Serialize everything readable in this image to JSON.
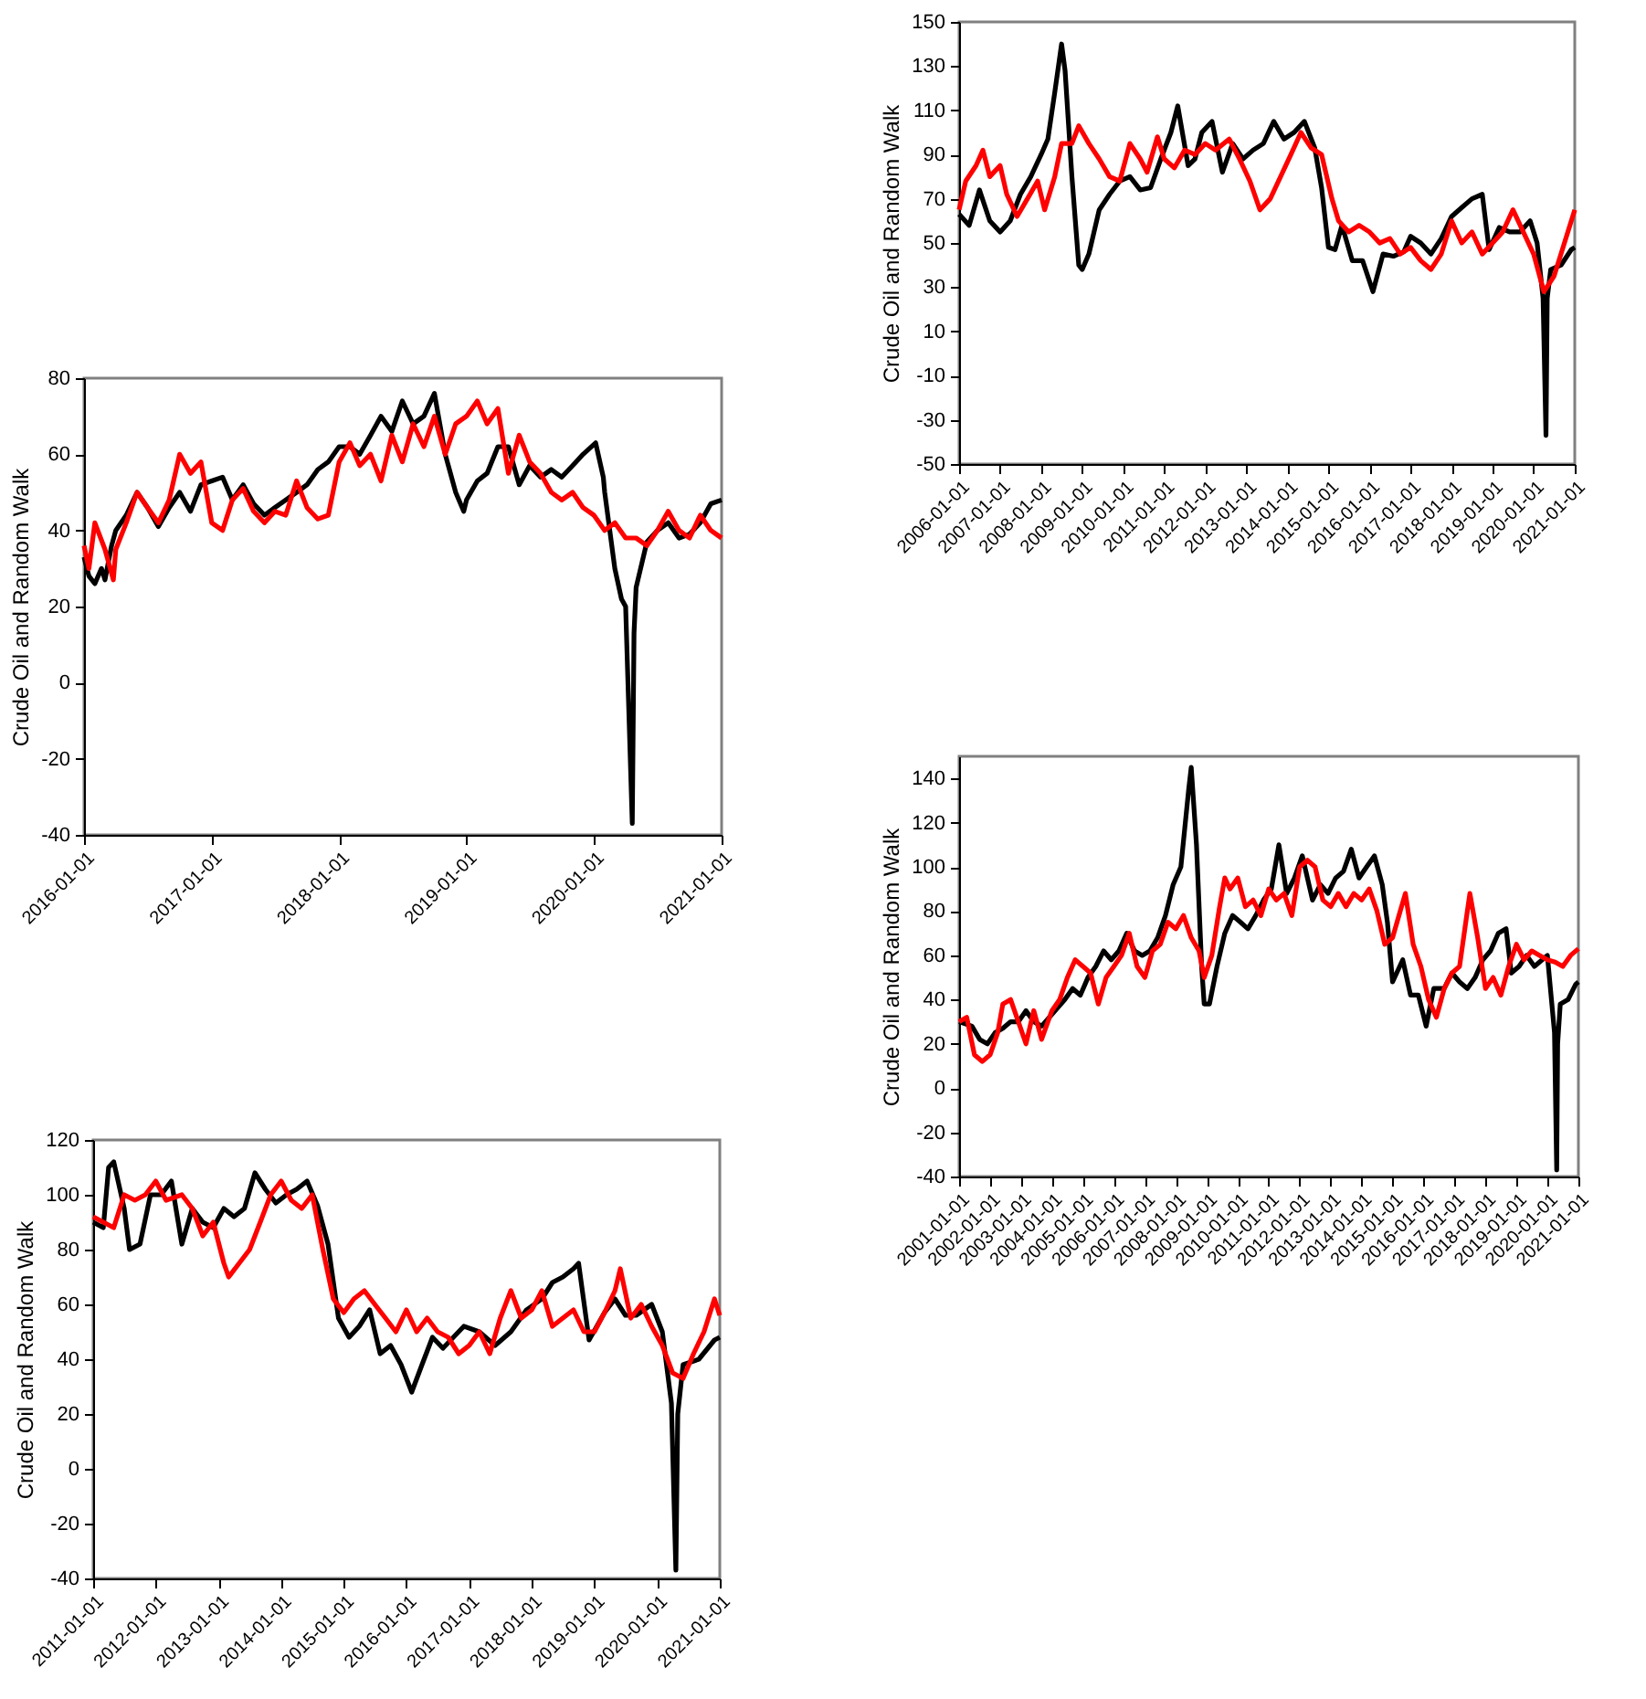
{
  "chart_data": [
    {
      "type": "line",
      "ylabel": "Crude Oil and Random Walk",
      "xlim": [
        "2006-01-01",
        "2021-01-01"
      ],
      "ylim": [
        -50,
        150
      ],
      "yticks": [
        -50,
        -30,
        -10,
        10,
        30,
        50,
        70,
        90,
        110,
        130,
        150
      ],
      "xticks": [
        "2006-01-01",
        "2007-01-01",
        "2008-01-01",
        "2009-01-01",
        "2010-01-01",
        "2011-01-01",
        "2012-01-01",
        "2013-01-01",
        "2014-01-01",
        "2015-01-01",
        "2016-01-01",
        "2017-01-01",
        "2018-01-01",
        "2019-01-01",
        "2020-01-01",
        "2021-01-01"
      ],
      "series": [
        {
          "color": "#000000",
          "x": [
            "2006-01",
            "2006-04",
            "2006-07",
            "2006-10",
            "2007-01",
            "2007-04",
            "2007-07",
            "2007-10",
            "2008-01",
            "2008-03",
            "2008-05",
            "2008-07",
            "2008-08",
            "2008-10",
            "2008-12",
            "2009-01",
            "2009-03",
            "2009-06",
            "2009-09",
            "2009-12",
            "2010-03",
            "2010-06",
            "2010-09",
            "2010-12",
            "2011-03",
            "2011-05",
            "2011-08",
            "2011-10",
            "2011-12",
            "2012-03",
            "2012-06",
            "2012-09",
            "2012-12",
            "2013-03",
            "2013-06",
            "2013-09",
            "2013-12",
            "2014-03",
            "2014-06",
            "2014-09",
            "2014-11",
            "2015-01",
            "2015-03",
            "2015-05",
            "2015-08",
            "2015-11",
            "2016-02",
            "2016-05",
            "2016-08",
            "2016-11",
            "2017-01",
            "2017-04",
            "2017-07",
            "2017-10",
            "2018-01",
            "2018-04",
            "2018-07",
            "2018-10",
            "2018-12",
            "2019-03",
            "2019-06",
            "2019-09",
            "2019-12",
            "2020-02",
            "2020-03-25",
            "2020-04-20",
            "2020-05",
            "2020-06",
            "2020-09",
            "2020-12",
            "2021-01"
          ],
          "values": [
            63,
            58,
            74,
            60,
            55,
            60,
            72,
            80,
            90,
            97,
            118,
            140,
            128,
            80,
            40,
            38,
            45,
            65,
            72,
            78,
            80,
            74,
            75,
            88,
            100,
            112,
            85,
            88,
            100,
            105,
            82,
            95,
            88,
            92,
            95,
            105,
            97,
            100,
            105,
            93,
            75,
            48,
            47,
            58,
            42,
            42,
            28,
            45,
            44,
            46,
            53,
            50,
            45,
            52,
            62,
            66,
            70,
            72,
            47,
            57,
            55,
            55,
            60,
            50,
            25,
            -37,
            25,
            38,
            40,
            47,
            48
          ]
        },
        {
          "color": "#ff0000",
          "x": [
            "2006-01",
            "2006-03",
            "2006-06",
            "2006-08",
            "2006-10",
            "2007-01",
            "2007-03",
            "2007-06",
            "2007-09",
            "2007-12",
            "2008-02",
            "2008-05",
            "2008-07",
            "2008-10",
            "2008-12",
            "2009-03",
            "2009-06",
            "2009-09",
            "2009-12",
            "2010-03",
            "2010-06",
            "2010-08",
            "2010-11",
            "2011-01",
            "2011-04",
            "2011-07",
            "2011-10",
            "2012-01",
            "2012-04",
            "2012-08",
            "2012-11",
            "2013-02",
            "2013-05",
            "2013-08",
            "2013-11",
            "2014-02",
            "2014-05",
            "2014-08",
            "2014-11",
            "2015-02",
            "2015-04",
            "2015-07",
            "2015-10",
            "2016-01",
            "2016-04",
            "2016-07",
            "2016-10",
            "2017-01",
            "2017-04",
            "2017-07",
            "2017-10",
            "2018-01",
            "2018-04",
            "2018-07",
            "2018-10",
            "2019-01",
            "2019-04",
            "2019-07",
            "2019-10",
            "2020-01",
            "2020-04",
            "2020-07",
            "2020-10",
            "2021-01"
          ],
          "values": [
            65,
            78,
            85,
            92,
            80,
            85,
            72,
            62,
            70,
            78,
            65,
            80,
            95,
            95,
            103,
            95,
            88,
            80,
            78,
            95,
            88,
            82,
            98,
            88,
            84,
            92,
            90,
            95,
            92,
            97,
            88,
            78,
            65,
            70,
            80,
            90,
            100,
            93,
            90,
            70,
            60,
            55,
            58,
            55,
            50,
            52,
            45,
            48,
            42,
            38,
            45,
            60,
            50,
            55,
            45,
            50,
            55,
            65,
            55,
            45,
            28,
            35,
            50,
            65
          ]
        }
      ]
    },
    {
      "type": "line",
      "ylabel": "Crude Oil and Random Walk",
      "xlim": [
        "2016-01-01",
        "2021-01-01"
      ],
      "ylim": [
        -40,
        80
      ],
      "yticks": [
        -40,
        -20,
        0,
        20,
        40,
        60,
        80
      ],
      "xticks": [
        "2016-01-01",
        "2017-01-01",
        "2018-01-01",
        "2019-01-01",
        "2020-01-01",
        "2021-01-01"
      ],
      "series": [
        {
          "color": "#000000",
          "x": [
            "2016-01-01",
            "2016-01-15",
            "2016-02-01",
            "2016-02-20",
            "2016-03-01",
            "2016-03-20",
            "2016-04",
            "2016-05",
            "2016-06",
            "2016-07",
            "2016-08",
            "2016-09",
            "2016-10",
            "2016-11",
            "2016-12",
            "2017-01",
            "2017-02",
            "2017-03",
            "2017-04",
            "2017-05",
            "2017-06",
            "2017-07",
            "2017-08",
            "2017-09",
            "2017-10",
            "2017-11",
            "2017-12",
            "2018-01",
            "2018-02",
            "2018-03",
            "2018-04",
            "2018-05",
            "2018-06",
            "2018-07",
            "2018-08",
            "2018-09",
            "2018-10",
            "2018-11",
            "2018-12",
            "2018-12-24",
            "2019-01",
            "2019-02",
            "2019-03",
            "2019-04",
            "2019-05",
            "2019-06",
            "2019-07",
            "2019-08",
            "2019-09",
            "2019-10",
            "2019-11",
            "2019-12",
            "2020-01-06",
            "2020-01-28",
            "2020-02",
            "2020-03",
            "2020-03-20",
            "2020-04-01",
            "2020-04-20",
            "2020-04-25",
            "2020-05",
            "2020-06",
            "2020-07",
            "2020-08",
            "2020-09",
            "2020-10",
            "2020-11",
            "2020-12",
            "2021-01-01"
          ],
          "values": [
            33,
            28,
            26,
            30,
            27,
            36,
            40,
            44,
            50,
            46,
            41,
            46,
            50,
            45,
            52,
            53,
            54,
            48,
            52,
            47,
            44,
            46,
            48,
            50,
            52,
            56,
            58,
            62,
            62,
            60,
            65,
            70,
            66,
            74,
            68,
            70,
            76,
            60,
            50,
            45,
            48,
            53,
            55,
            62,
            62,
            52,
            57,
            54,
            56,
            54,
            57,
            60,
            63,
            54,
            50,
            30,
            22,
            20,
            -37,
            13,
            25,
            37,
            40,
            42,
            38,
            39,
            42,
            47,
            48
          ]
        },
        {
          "color": "#ff0000",
          "x": [
            "2016-01-01",
            "2016-01-15",
            "2016-02",
            "2016-03",
            "2016-03-25",
            "2016-04",
            "2016-05",
            "2016-06",
            "2016-07",
            "2016-08",
            "2016-09",
            "2016-10",
            "2016-11",
            "2016-12",
            "2017-01",
            "2017-02",
            "2017-03",
            "2017-04",
            "2017-05",
            "2017-06",
            "2017-07",
            "2017-08",
            "2017-09",
            "2017-10",
            "2017-11",
            "2017-12",
            "2018-01",
            "2018-02",
            "2018-03",
            "2018-04",
            "2018-05",
            "2018-06",
            "2018-07",
            "2018-08",
            "2018-09",
            "2018-10",
            "2018-11",
            "2018-12",
            "2019-01",
            "2019-02",
            "2019-03",
            "2019-04",
            "2019-05",
            "2019-06",
            "2019-07",
            "2019-08",
            "2019-09",
            "2019-10",
            "2019-11",
            "2019-12",
            "2020-01",
            "2020-02",
            "2020-03",
            "2020-04",
            "2020-05",
            "2020-06",
            "2020-07",
            "2020-08",
            "2020-09",
            "2020-10",
            "2020-11",
            "2020-12",
            "2021-01-01"
          ],
          "values": [
            36,
            30,
            42,
            35,
            27,
            35,
            42,
            50,
            46,
            42,
            48,
            60,
            55,
            58,
            42,
            40,
            48,
            51,
            45,
            42,
            45,
            44,
            53,
            46,
            43,
            44,
            58,
            63,
            57,
            60,
            53,
            65,
            58,
            68,
            62,
            70,
            60,
            68,
            70,
            74,
            68,
            72,
            55,
            65,
            58,
            55,
            50,
            48,
            50,
            46,
            44,
            40,
            42,
            38,
            38,
            36,
            40,
            45,
            40,
            38,
            44,
            40,
            38
          ]
        }
      ]
    },
    {
      "type": "line",
      "ylabel": "Crude Oil and Random Walk",
      "xlim": [
        "2001-01-01",
        "2021-01-01"
      ],
      "ylim": [
        -40,
        150
      ],
      "yticks": [
        -40,
        -20,
        0,
        20,
        40,
        60,
        80,
        100,
        120,
        140
      ],
      "xticks": [
        "2001-01-01",
        "2002-01-01",
        "2003-01-01",
        "2004-01-01",
        "2005-01-01",
        "2006-01-01",
        "2007-01-01",
        "2008-01-01",
        "2009-01-01",
        "2010-01-01",
        "2011-01-01",
        "2012-01-01",
        "2013-01-01",
        "2014-01-01",
        "2015-01-01",
        "2016-01-01",
        "2017-01-01",
        "2018-01-01",
        "2019-01-01",
        "2020-01-01",
        "2021-01-01"
      ],
      "series": [
        {
          "color": "#000000",
          "x": [
            "2001-01",
            "2001-06",
            "2001-09",
            "2001-12",
            "2002-03",
            "2002-06",
            "2002-09",
            "2002-12",
            "2003-03",
            "2003-06",
            "2003-09",
            "2003-12",
            "2004-03",
            "2004-06",
            "2004-09",
            "2004-12",
            "2005-03",
            "2005-06",
            "2005-09",
            "2005-12",
            "2006-03",
            "2006-06",
            "2006-09",
            "2006-12",
            "2007-03",
            "2007-06",
            "2007-09",
            "2007-12",
            "2008-03",
            "2008-06",
            "2008-07",
            "2008-09",
            "2008-11",
            "2008-12",
            "2009-02",
            "2009-05",
            "2009-08",
            "2009-11",
            "2010-02",
            "2010-05",
            "2010-08",
            "2010-11",
            "2011-02",
            "2011-05",
            "2011-08",
            "2011-11",
            "2012-02",
            "2012-06",
            "2012-09",
            "2012-12",
            "2013-03",
            "2013-06",
            "2013-09",
            "2013-12",
            "2014-03",
            "2014-06",
            "2014-09",
            "2014-11",
            "2015-01",
            "2015-05",
            "2015-08",
            "2015-11",
            "2016-02",
            "2016-05",
            "2016-09",
            "2016-12",
            "2017-03",
            "2017-06",
            "2017-09",
            "2017-12",
            "2018-03",
            "2018-06",
            "2018-09",
            "2018-11",
            "2019-02",
            "2019-05",
            "2019-08",
            "2019-11",
            "2020-01",
            "2020-03-25",
            "2020-04-20",
            "2020-05",
            "2020-06",
            "2020-09",
            "2020-12",
            "2021-01"
          ],
          "values": [
            30,
            28,
            22,
            20,
            25,
            27,
            30,
            30,
            35,
            30,
            28,
            32,
            36,
            40,
            45,
            42,
            50,
            55,
            62,
            58,
            62,
            70,
            62,
            60,
            62,
            68,
            78,
            92,
            100,
            135,
            145,
            110,
            55,
            38,
            38,
            55,
            70,
            78,
            75,
            72,
            78,
            85,
            90,
            110,
            88,
            95,
            105,
            85,
            92,
            88,
            95,
            98,
            108,
            95,
            100,
            105,
            92,
            75,
            48,
            58,
            42,
            42,
            28,
            45,
            45,
            52,
            48,
            45,
            50,
            58,
            62,
            70,
            72,
            52,
            55,
            60,
            55,
            58,
            60,
            25,
            -37,
            20,
            38,
            40,
            47,
            48
          ]
        },
        {
          "color": "#ff0000",
          "x": [
            "2001-01",
            "2001-04",
            "2001-07",
            "2001-10",
            "2002-01",
            "2002-04",
            "2002-06",
            "2002-09",
            "2002-12",
            "2003-03",
            "2003-06",
            "2003-09",
            "2004-01",
            "2004-04",
            "2004-07",
            "2004-10",
            "2005-01",
            "2005-04",
            "2005-07",
            "2005-10",
            "2006-01",
            "2006-04",
            "2006-07",
            "2006-10",
            "2007-01",
            "2007-04",
            "2007-07",
            "2007-10",
            "2008-01",
            "2008-04",
            "2008-07",
            "2008-10",
            "2008-12",
            "2009-03",
            "2009-06",
            "2009-08",
            "2009-10",
            "2010-01",
            "2010-04",
            "2010-07",
            "2010-10",
            "2011-01",
            "2011-04",
            "2011-07",
            "2011-10",
            "2012-01",
            "2012-04",
            "2012-07",
            "2012-10",
            "2013-01",
            "2013-04",
            "2013-07",
            "2013-10",
            "2014-01",
            "2014-04",
            "2014-07",
            "2014-10",
            "2015-01",
            "2015-04",
            "2015-06",
            "2015-09",
            "2015-12",
            "2016-03",
            "2016-06",
            "2016-09",
            "2016-12",
            "2017-03",
            "2017-06",
            "2017-07",
            "2017-10",
            "2018-01",
            "2018-04",
            "2018-07",
            "2018-10",
            "2019-01",
            "2019-04",
            "2019-07",
            "2019-10",
            "2020-01",
            "2020-04",
            "2020-07",
            "2020-10",
            "2021-01"
          ],
          "values": [
            30,
            32,
            15,
            12,
            15,
            25,
            38,
            40,
            30,
            20,
            35,
            22,
            35,
            40,
            50,
            58,
            55,
            52,
            38,
            50,
            55,
            60,
            70,
            55,
            50,
            62,
            65,
            75,
            72,
            78,
            68,
            62,
            50,
            60,
            82,
            95,
            90,
            95,
            82,
            85,
            78,
            90,
            85,
            88,
            78,
            100,
            103,
            100,
            85,
            82,
            88,
            82,
            88,
            85,
            90,
            80,
            65,
            68,
            80,
            88,
            65,
            55,
            40,
            32,
            45,
            52,
            55,
            80,
            88,
            68,
            45,
            50,
            42,
            55,
            65,
            58,
            62,
            60,
            58,
            57,
            55,
            60,
            63
          ]
        }
      ]
    },
    {
      "type": "line",
      "ylabel": "Crude Oil and Random Walk",
      "xlim": [
        "2011-01-01",
        "2021-01-01"
      ],
      "ylim": [
        -40,
        120
      ],
      "yticks": [
        -40,
        -20,
        0,
        20,
        40,
        60,
        80,
        100,
        120
      ],
      "xticks": [
        "2011-01-01",
        "2012-01-01",
        "2013-01-01",
        "2014-01-01",
        "2015-01-01",
        "2016-01-01",
        "2017-01-01",
        "2018-01-01",
        "2019-01-01",
        "2020-01-01",
        "2021-01-01"
      ],
      "series": [
        {
          "color": "#000000",
          "x": [
            "2011-01",
            "2011-03",
            "2011-04",
            "2011-05",
            "2011-07",
            "2011-08",
            "2011-10",
            "2011-12",
            "2012-02",
            "2012-04",
            "2012-06",
            "2012-08",
            "2012-10",
            "2012-12",
            "2013-02",
            "2013-04",
            "2013-06",
            "2013-08",
            "2013-10",
            "2013-12",
            "2014-02",
            "2014-04",
            "2014-06",
            "2014-08",
            "2014-10",
            "2014-12",
            "2015-02",
            "2015-04",
            "2015-06",
            "2015-08",
            "2015-10",
            "2015-12",
            "2016-02",
            "2016-04",
            "2016-06",
            "2016-08",
            "2016-10",
            "2016-12",
            "2017-03",
            "2017-06",
            "2017-09",
            "2017-12",
            "2018-03",
            "2018-05",
            "2018-07",
            "2018-09",
            "2018-10",
            "2018-12",
            "2019-03",
            "2019-05",
            "2019-07",
            "2019-09",
            "2019-12",
            "2020-02",
            "2020-03-25",
            "2020-04-20",
            "2020-05",
            "2020-06",
            "2020-09",
            "2020-12",
            "2021-01"
          ],
          "values": [
            90,
            88,
            110,
            112,
            95,
            80,
            82,
            100,
            100,
            105,
            82,
            95,
            90,
            88,
            95,
            92,
            95,
            108,
            102,
            97,
            100,
            102,
            105,
            96,
            82,
            55,
            48,
            52,
            58,
            42,
            45,
            38,
            28,
            38,
            48,
            44,
            48,
            52,
            50,
            45,
            50,
            58,
            62,
            68,
            70,
            73,
            75,
            47,
            57,
            62,
            56,
            56,
            60,
            50,
            24,
            -37,
            20,
            38,
            40,
            47,
            48
          ]
        },
        {
          "color": "#ff0000",
          "x": [
            "2011-01",
            "2011-03",
            "2011-05",
            "2011-07",
            "2011-09",
            "2011-11",
            "2012-01",
            "2012-03",
            "2012-06",
            "2012-08",
            "2012-10",
            "2012-12",
            "2013-02",
            "2013-03",
            "2013-05",
            "2013-07",
            "2013-09",
            "2013-11",
            "2014-01",
            "2014-03",
            "2014-05",
            "2014-07",
            "2014-09",
            "2014-11",
            "2015-01",
            "2015-03",
            "2015-05",
            "2015-07",
            "2015-09",
            "2015-11",
            "2016-01",
            "2016-03",
            "2016-05",
            "2016-07",
            "2016-09",
            "2016-11",
            "2017-01",
            "2017-03",
            "2017-05",
            "2017-07",
            "2017-09",
            "2017-11",
            "2018-01",
            "2018-03",
            "2018-05",
            "2018-07",
            "2018-09",
            "2018-11",
            "2019-01",
            "2019-03",
            "2019-05",
            "2019-06",
            "2019-08",
            "2019-10",
            "2019-12",
            "2020-02",
            "2020-04",
            "2020-06",
            "2020-08",
            "2020-10",
            "2020-12",
            "2021-01"
          ],
          "values": [
            92,
            90,
            88,
            100,
            98,
            100,
            105,
            98,
            100,
            95,
            85,
            90,
            75,
            70,
            75,
            80,
            90,
            100,
            105,
            98,
            95,
            100,
            80,
            62,
            57,
            62,
            65,
            60,
            55,
            50,
            58,
            50,
            55,
            50,
            48,
            42,
            45,
            50,
            42,
            55,
            65,
            55,
            58,
            65,
            52,
            55,
            58,
            50,
            50,
            57,
            65,
            73,
            55,
            60,
            52,
            45,
            35,
            33,
            42,
            50,
            62,
            56
          ]
        }
      ]
    }
  ]
}
